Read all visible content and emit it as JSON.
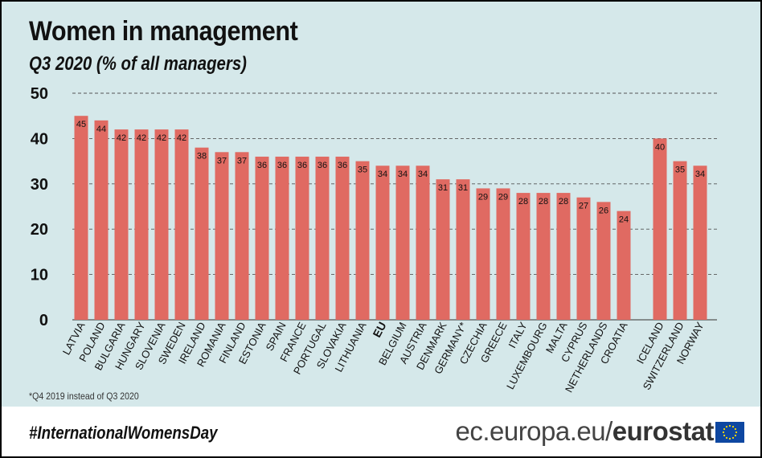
{
  "header": {
    "title": "Women in management",
    "subtitle": "Q3 2020 (% of all managers)"
  },
  "footnote": "*Q4 2019 instead of Q3 2020",
  "footer": {
    "hashtag": "#InternationalWomensDay",
    "site_domain": "ec.europa.eu/",
    "site_brand": "eurostat",
    "flag_icon": "eu-flag-icon"
  },
  "colors": {
    "bar": "#e06a62",
    "background": "#d5e8ea",
    "gridline": "#555555",
    "flag_blue": "#0e47a1",
    "flag_stars": "#ffdd00"
  },
  "chart_data": {
    "type": "bar",
    "title": "Women in management",
    "subtitle": "Q3 2020 (% of all managers)",
    "xlabel": "",
    "ylabel": "",
    "ylim": [
      0,
      50
    ],
    "yticks": [
      0,
      10,
      20,
      30,
      40,
      50
    ],
    "grid": "horizontal dashed",
    "categories": [
      "LATVIA",
      "POLAND",
      "BULGARIA",
      "HUNGARY",
      "SLOVENIA",
      "SWEDEN",
      "IRELAND",
      "ROMANIA",
      "FINLAND",
      "ESTONIA",
      "SPAIN",
      "FRANCE",
      "PORTUGAL",
      "SLOVAKIA",
      "LITHUANIA",
      "EU",
      "BELGIUM",
      "AUSTRIA",
      "DENMARK",
      "GERMANY*",
      "CZECHIA",
      "GREECE",
      "ITALY",
      "LUXEMBOURG",
      "MALTA",
      "CYPRUS",
      "NETHERLANDS",
      "CROATIA",
      "ICELAND",
      "SWITZERLAND",
      "NORWAY"
    ],
    "values": [
      45,
      44,
      42,
      42,
      42,
      42,
      38,
      37,
      37,
      36,
      36,
      36,
      36,
      36,
      35,
      34,
      34,
      34,
      31,
      31,
      29,
      29,
      28,
      28,
      28,
      27,
      26,
      24,
      40,
      35,
      34
    ],
    "data_labels": true
  }
}
